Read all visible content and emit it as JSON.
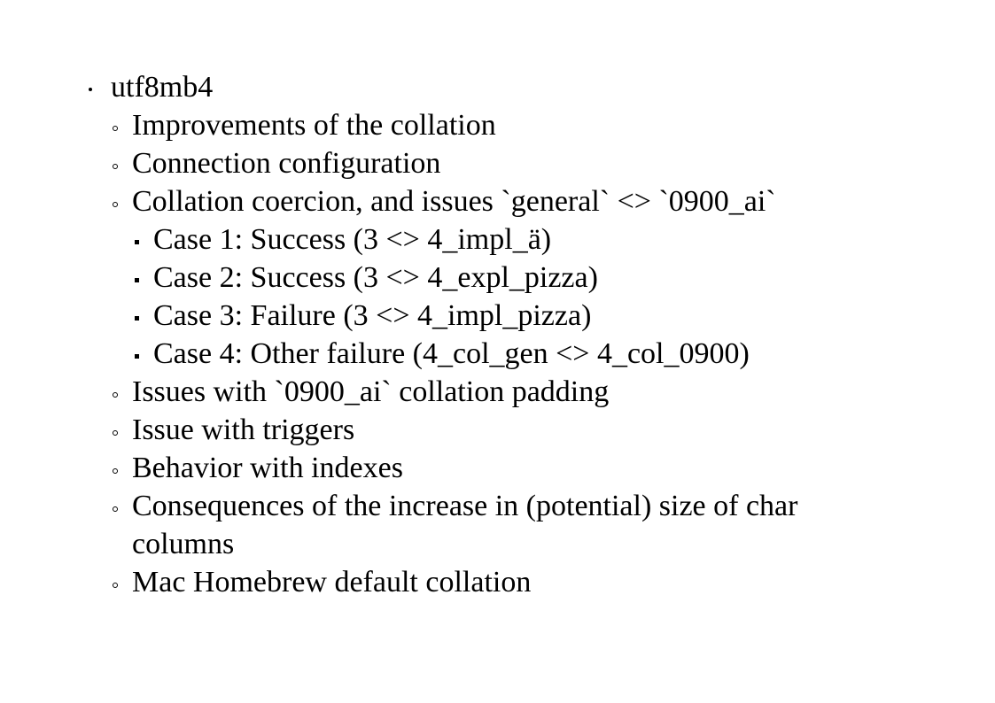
{
  "outline": {
    "root": "utf8mb4",
    "items": [
      "Improvements of the collation",
      "Connection configuration",
      "Collation coercion, and issues `general` <> `0900_ai`",
      "Case 1: Success (3 <> 4_impl_ä)",
      "Case 2: Success (3 <> 4_expl_pizza)",
      "Case 3: Failure (3 <> 4_impl_pizza)",
      "Case 4: Other failure (4_col_gen <> 4_col_0900)",
      "Issues with `0900_ai` collation padding",
      "Issue with triggers",
      "Behavior with indexes",
      "Consequences of the increase in (potential) size of char columns",
      "Mac Homebrew default collation"
    ]
  }
}
